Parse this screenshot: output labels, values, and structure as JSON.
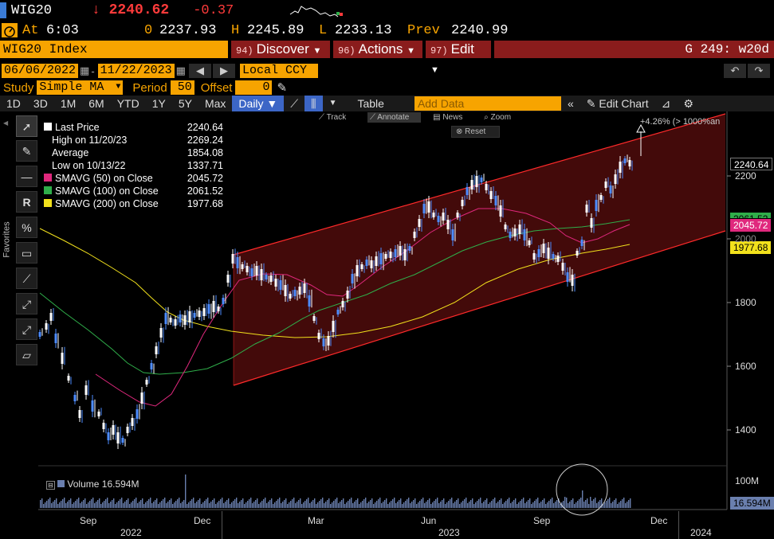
{
  "header": {
    "ticker": "WIG20",
    "last": "↓ 2240.62",
    "change": "-0.37"
  },
  "quote": {
    "time_label": "At",
    "time": "6:03",
    "open_label": "0",
    "open": "2237.93",
    "high_label": "H",
    "high": "2245.89",
    "low_label": "L",
    "low": "2233.13",
    "prev_label": "Prev",
    "prev": "2240.99"
  },
  "nav": {
    "security": "WIG20 Index",
    "discover_num": "94)",
    "discover": "Discover",
    "actions_num": "96)",
    "actions": "Actions",
    "edit_num": "97)",
    "edit": "Edit",
    "function": "G 249: w20d"
  },
  "dates": {
    "start": "06/06/2022",
    "end": "11/22/2023",
    "currency": "Local CCY"
  },
  "study": {
    "label": "Study",
    "value": "Simple MA",
    "period_label": "Period",
    "period": "50",
    "offset_label": "Offset",
    "offset": "0"
  },
  "toolbar": {
    "timeframes": [
      "1D",
      "3D",
      "1M",
      "6M",
      "YTD",
      "1Y",
      "5Y",
      "Max"
    ],
    "frequency": "Daily ▼",
    "table": "Table",
    "add_data_placeholder": "Add Data",
    "edit_chart": "Edit Chart"
  },
  "chart_controls": {
    "track": "Track",
    "annotate": "Annotate",
    "news": "News",
    "zoom": "Zoom",
    "reset": "Reset"
  },
  "sidebar": {
    "favorites": "Favorites"
  },
  "legend": [
    {
      "label": "Last Price",
      "value": "2240.64",
      "color": "#ffffff"
    },
    {
      "label": "High on 11/20/23",
      "value": "2269.24",
      "color": "#888888"
    },
    {
      "label": "Average",
      "value": "1854.08",
      "color": "#888888"
    },
    {
      "label": "Low on 10/13/22",
      "value": "1337.71",
      "color": "#888888"
    },
    {
      "label": "SMAVG (50)  on Close",
      "value": "2045.72",
      "color": "#e0287d"
    },
    {
      "label": "SMAVG (100)  on Close",
      "value": "2061.52",
      "color": "#2fae4a"
    },
    {
      "label": "SMAVG (200)  on Close",
      "value": "1977.68",
      "color": "#f2e11c"
    }
  ],
  "annotation": {
    "projection": "+4.26% (> 1000%an"
  },
  "volume": {
    "label": "Volume",
    "value": "16.594M",
    "axis_100m": "100M"
  },
  "axis": {
    "y_ticks": [
      "2200",
      "2000",
      "1800",
      "1600",
      "1400"
    ],
    "x_months": [
      "Sep",
      "Dec",
      "Mar",
      "Jun",
      "Sep",
      "Dec"
    ],
    "x_years": [
      "2022",
      "2023",
      "2024"
    ]
  },
  "price_tags": {
    "last": "2240.64",
    "sma100": "2061.52",
    "sma50": "2045.72",
    "sma200": "1977.68"
  },
  "colors": {
    "accent_orange": "#f7a400",
    "menu_red": "#8a1c1c",
    "channel": "#ff2a2a",
    "sma50": "#e0287d",
    "sma100": "#2fae4a",
    "sma200": "#f2e11c"
  }
}
